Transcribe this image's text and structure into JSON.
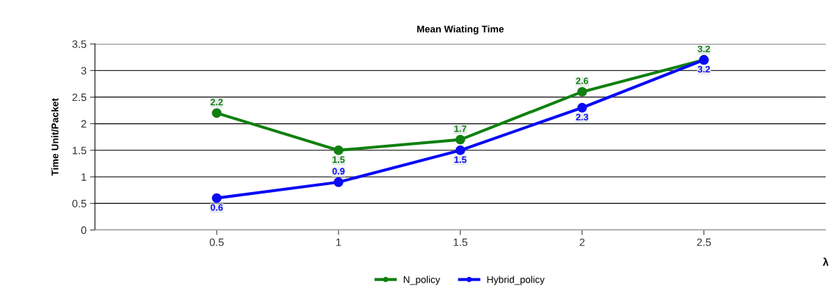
{
  "chart_data": {
    "type": "line",
    "title": "Mean Wiating Time",
    "xlabel": "λ",
    "ylabel": "Time Unit/Packet",
    "x": [
      0.5,
      1,
      1.5,
      2,
      2.5
    ],
    "series": [
      {
        "name": "N_policy",
        "color": "#108010",
        "values": [
          2.2,
          1.5,
          1.7,
          2.6,
          3.2
        ]
      },
      {
        "name": "Hybrid_policy",
        "color": "#0a0af5",
        "values": [
          0.6,
          0.9,
          1.5,
          2.3,
          3.2
        ]
      }
    ],
    "xlim": [
      0,
      3
    ],
    "xticks": [
      0.5,
      1,
      1.5,
      2,
      2.5
    ],
    "ylim": [
      0,
      3.5
    ],
    "yticks": [
      0,
      0.5,
      1,
      1.5,
      2,
      2.5,
      3,
      3.5
    ],
    "grid": "y",
    "legend": "bottom",
    "marker": "circle",
    "line_style": "solid",
    "data_labels": true
  }
}
